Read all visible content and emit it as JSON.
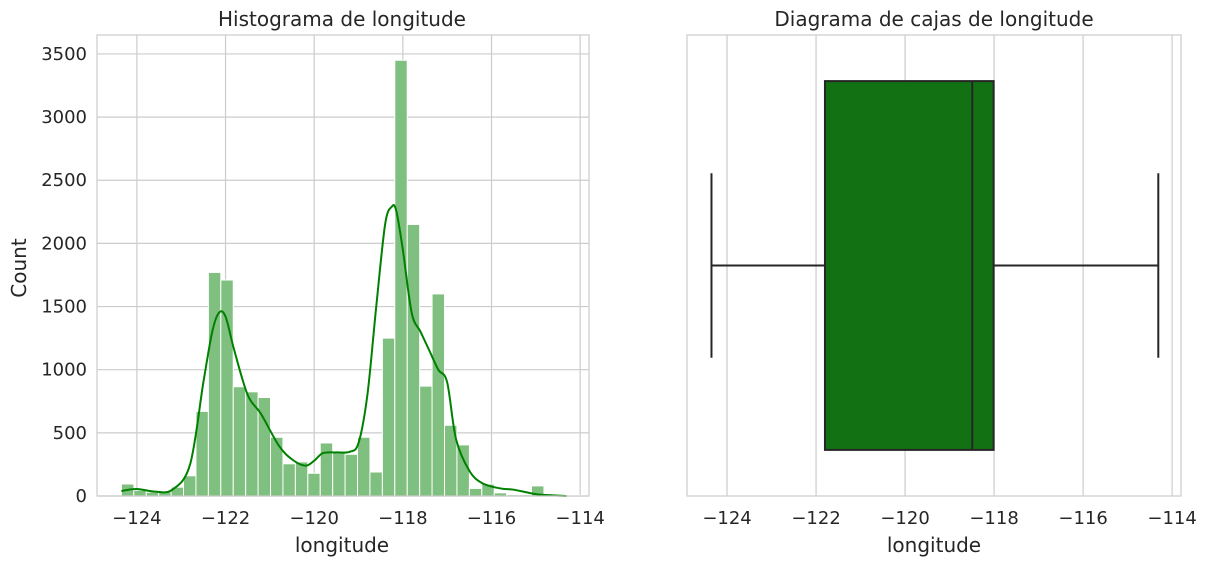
{
  "colors": {
    "bar_fill": "#7fbf7f",
    "bar_edge": "#ffffff",
    "kde_line": "#008000",
    "box_fill": "#127112",
    "box_edge": "#262626",
    "grid": "#cccccc",
    "frame": "#cccccc",
    "text": "#262626"
  },
  "chart_data": [
    {
      "type": "bar",
      "title": "Histograma de longitude",
      "xlabel": "longitude",
      "ylabel": "Count",
      "xlim": [
        -124.9,
        -113.8
      ],
      "ylim": [
        0,
        3650
      ],
      "grid": true,
      "xticks": [
        -124,
        -122,
        -120,
        -118,
        -116,
        -114
      ],
      "xtick_labels": [
        "−124",
        "−122",
        "−120",
        "−118",
        "−116",
        "−114"
      ],
      "yticks": [
        0,
        500,
        1000,
        1500,
        2000,
        2500,
        3000,
        3500
      ],
      "ytick_labels": [
        "0",
        "500",
        "1000",
        "1500",
        "2000",
        "2500",
        "3000",
        "3500"
      ],
      "bins": {
        "start": -124.35,
        "width": 0.2804,
        "counts": [
          95,
          45,
          30,
          35,
          70,
          160,
          670,
          1770,
          1710,
          865,
          825,
          780,
          465,
          255,
          270,
          180,
          420,
          345,
          330,
          465,
          190,
          1250,
          3450,
          2150,
          870,
          1600,
          560,
          405,
          60,
          95,
          25,
          10,
          10,
          80,
          0,
          0,
          5
        ]
      },
      "kde": {
        "x": [
          -124.35,
          -124.0,
          -123.6,
          -123.2,
          -122.8,
          -122.5,
          -122.3,
          -122.15,
          -122.0,
          -121.8,
          -121.5,
          -121.2,
          -120.8,
          -120.5,
          -120.2,
          -120.0,
          -119.8,
          -119.5,
          -119.2,
          -119.0,
          -118.8,
          -118.6,
          -118.4,
          -118.25,
          -118.15,
          -118.0,
          -117.8,
          -117.6,
          -117.4,
          -117.2,
          -117.0,
          -116.8,
          -116.5,
          -116.2,
          -115.8,
          -115.5,
          -115.0,
          -114.6,
          -114.31
        ],
        "y": [
          40,
          55,
          35,
          50,
          250,
          900,
          1300,
          1450,
          1420,
          1150,
          800,
          650,
          400,
          290,
          240,
          280,
          340,
          345,
          350,
          420,
          800,
          1500,
          2150,
          2290,
          2260,
          1950,
          1450,
          1300,
          1150,
          1000,
          900,
          450,
          200,
          100,
          60,
          50,
          15,
          5,
          0
        ]
      }
    },
    {
      "type": "box",
      "title": "Diagrama de cajas de longitude",
      "xlabel": "longitude",
      "xlim": [
        -124.9,
        -113.8
      ],
      "grid": true,
      "xticks": [
        -124,
        -122,
        -120,
        -118,
        -116,
        -114
      ],
      "xtick_labels": [
        "−124",
        "−122",
        "−120",
        "−118",
        "−116",
        "−114"
      ],
      "whisker_low": -124.35,
      "q1": -121.8,
      "median": -118.49,
      "q3": -118.01,
      "whisker_high": -114.31
    }
  ]
}
